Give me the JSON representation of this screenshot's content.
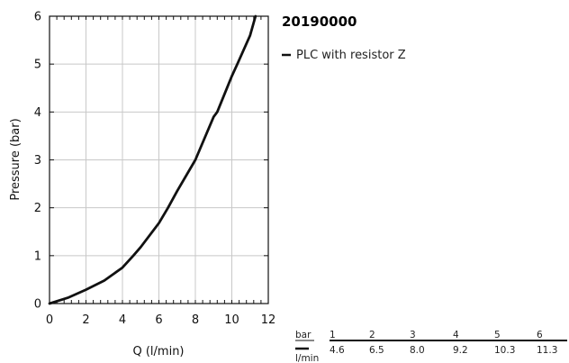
{
  "chart_data": {
    "type": "line",
    "title": "20190000",
    "xlabel": "Q (l/min)",
    "ylabel": "Pressure (bar)",
    "xlim": [
      0,
      12
    ],
    "ylim": [
      0,
      6
    ],
    "x_ticks": [
      0,
      2,
      4,
      6,
      8,
      10,
      12
    ],
    "y_ticks": [
      0,
      1,
      2,
      3,
      4,
      5,
      6
    ],
    "grid": true,
    "legend_position": "right",
    "series": [
      {
        "name": "PLC with resistor Z",
        "color": "#111111",
        "x": [
          0,
          1,
          2,
          3,
          4,
          4.6,
          5,
          6,
          6.5,
          7,
          8,
          9,
          9.2,
          10,
          10.3,
          11,
          11.3
        ],
        "y": [
          0,
          0.12,
          0.29,
          0.48,
          0.75,
          1.0,
          1.18,
          1.68,
          2.0,
          2.35,
          3.0,
          3.9,
          4.0,
          4.75,
          5.0,
          5.6,
          6.0
        ]
      }
    ]
  },
  "table": {
    "row_label_top": "bar",
    "row_label_bottom": "l/min",
    "bar_values": [
      "1",
      "2",
      "3",
      "4",
      "5",
      "6"
    ],
    "flow_values": [
      "4.6",
      "6.5",
      "8.0",
      "9.2",
      "10.3",
      "11.3"
    ]
  }
}
